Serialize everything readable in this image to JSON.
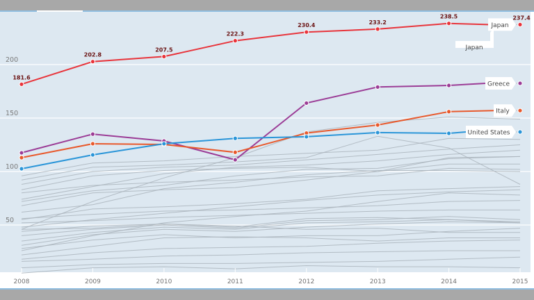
{
  "chart_data": {
    "type": "line",
    "title": "",
    "xlabel": "",
    "ylabel": "",
    "x": [
      "2008",
      "2009",
      "2010",
      "2011",
      "2012",
      "2013",
      "2014",
      "2015"
    ],
    "ylim": [
      0,
      245
    ],
    "yticks": [
      "50",
      "100",
      "150",
      "200"
    ],
    "ytick_values": [
      50,
      100,
      150,
      200
    ],
    "grid": true,
    "highlighted_series": [
      {
        "name": "Japan",
        "color": "#e8343b",
        "values": [
          181.6,
          202.8,
          207.5,
          222.3,
          230.4,
          233.2,
          238.5,
          237.4
        ],
        "data_labels": [
          "181.6",
          "202.8",
          "207.5",
          "222.3",
          "230.4",
          "233.2",
          "238.5",
          "237.4"
        ]
      },
      {
        "name": "Greece",
        "color": "#9b3c96",
        "values": [
          117.5,
          135,
          128.6,
          111,
          164,
          179,
          180.5,
          182.5
        ]
      },
      {
        "name": "Italy",
        "color": "#e8592c",
        "values": [
          113,
          126,
          125.3,
          118,
          136,
          143.5,
          156,
          157
        ]
      },
      {
        "name": "United States",
        "color": "#2a95d8",
        "values": [
          102.6,
          115.6,
          126,
          131,
          132.5,
          136.4,
          135.7,
          137
        ]
      }
    ],
    "callouts": [
      "Japan"
    ],
    "background_series_color": "#aab4bc",
    "background_series": [
      {
        "values": [
          46,
          72,
          94,
          113,
          137,
          146,
          151,
          149
        ]
      },
      {
        "values": [
          92,
          104,
          106,
          109,
          113,
          133,
          122,
          88
        ]
      },
      {
        "values": [
          96,
          108,
          110,
          114,
          117,
          120,
          131,
          130
        ]
      },
      {
        "values": [
          88,
          100,
          104,
          106,
          111,
          116,
          121,
          125
        ]
      },
      {
        "values": [
          83,
          96,
          101,
          103,
          104,
          100,
          113,
          114
        ]
      },
      {
        "values": [
          74,
          86,
          98,
          104,
          106,
          110,
          116,
          120
        ]
      },
      {
        "values": [
          72,
          82,
          87,
          96,
          102,
          103,
          112,
          114
        ]
      },
      {
        "values": [
          80,
          87,
          90,
          92,
          95,
          96,
          103,
          102
        ]
      },
      {
        "values": [
          68,
          80,
          83,
          85,
          92,
          100,
          107,
          107
        ]
      },
      {
        "values": [
          62,
          69,
          84,
          90,
          97,
          101,
          101,
          100
        ]
      },
      {
        "values": [
          55,
          65,
          67,
          70,
          74,
          82,
          84,
          86
        ]
      },
      {
        "values": [
          48,
          55,
          61,
          67,
          73,
          78,
          81,
          83
        ]
      },
      {
        "values": [
          26,
          40,
          52,
          58,
          63,
          72,
          80,
          78
        ]
      },
      {
        "values": [
          56,
          60,
          63,
          64,
          66,
          68,
          72,
          73
        ]
      },
      {
        "values": [
          52,
          54,
          57,
          59,
          61,
          63,
          64,
          64
        ]
      },
      {
        "values": [
          46,
          47,
          51,
          48,
          56,
          57,
          55,
          53
        ]
      },
      {
        "values": [
          40,
          46,
          50,
          47,
          54,
          55,
          58,
          55
        ]
      },
      {
        "values": [
          35,
          43,
          48,
          46,
          52,
          53,
          55,
          52
        ]
      },
      {
        "values": [
          31,
          41,
          46,
          44,
          48,
          51,
          53,
          52
        ]
      },
      {
        "values": [
          44,
          49,
          51,
          49,
          46,
          47,
          43,
          43
        ]
      },
      {
        "values": [
          28,
          36,
          41,
          38,
          40,
          40,
          44,
          47
        ]
      },
      {
        "values": [
          22,
          30,
          38,
          39,
          38,
          35,
          38,
          38
        ]
      },
      {
        "values": [
          18,
          24,
          28,
          29,
          30,
          33,
          35,
          36
        ]
      },
      {
        "values": [
          16,
          18,
          21,
          22,
          24,
          25,
          26,
          26
        ]
      },
      {
        "values": [
          10,
          13,
          14,
          14,
          15,
          16,
          18,
          20
        ]
      },
      {
        "values": [
          5,
          10,
          11,
          9,
          12,
          11,
          11,
          10
        ]
      }
    ]
  }
}
